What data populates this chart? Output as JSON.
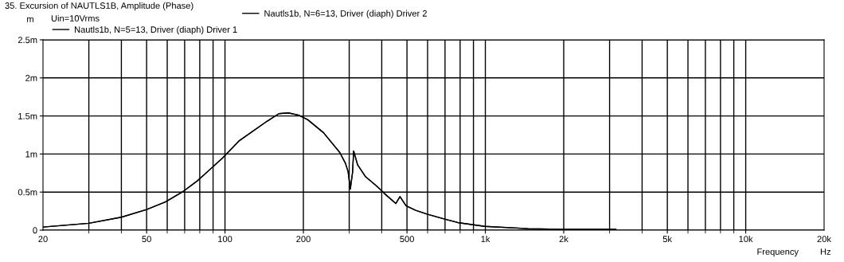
{
  "chart_data": {
    "type": "line",
    "title": "35. Excursion of NAUTLS1B, Amplitude (Phase)",
    "xlabel": "Frequency",
    "ylabel": "m",
    "annotations": [
      "Uin=10Vrms",
      "Hz"
    ],
    "log": "x",
    "grid": true,
    "legend": "top",
    "marker": "none",
    "line_style": "solid",
    "xlim": [
      20,
      20000
    ],
    "ylim": [
      0,
      2.5
    ],
    "xticks": [
      {
        "value": 20,
        "label": "20"
      },
      {
        "value": 50,
        "label": "50"
      },
      {
        "value": 100,
        "label": "100"
      },
      {
        "value": 200,
        "label": "200"
      },
      {
        "value": 500,
        "label": "500"
      },
      {
        "value": 1000,
        "label": "1k"
      },
      {
        "value": 2000,
        "label": "2k"
      },
      {
        "value": 5000,
        "label": "5k"
      },
      {
        "value": 10000,
        "label": "10k"
      },
      {
        "value": 20000,
        "label": "20k"
      }
    ],
    "yticks": [
      {
        "value": 0,
        "label": "0"
      },
      {
        "value": 0.5,
        "label": "0.5m"
      },
      {
        "value": 1,
        "label": "1m"
      },
      {
        "value": 1.5,
        "label": "1.5m"
      },
      {
        "value": 2,
        "label": "2m"
      },
      {
        "value": 2.5,
        "label": "2.5m"
      }
    ],
    "x": [
      20,
      30,
      40,
      50,
      59,
      68.5,
      78.5,
      98,
      113,
      145,
      161,
      175,
      192,
      208,
      239,
      276,
      290,
      297,
      303,
      309,
      312,
      323,
      347,
      382,
      410,
      453,
      470,
      496,
      540,
      597,
      689,
      783,
      994,
      1460,
      1970,
      3170
    ],
    "series": [
      {
        "name": "Nautls1b, N=5=13, Driver (diaph) Driver 1",
        "color": "#000000",
        "values": [
          0.04,
          0.09,
          0.17,
          0.27,
          0.37,
          0.5,
          0.65,
          0.95,
          1.17,
          1.43,
          1.53,
          1.54,
          1.51,
          1.45,
          1.28,
          1.02,
          0.88,
          0.77,
          0.54,
          0.76,
          1.04,
          0.86,
          0.7,
          0.58,
          0.48,
          0.35,
          0.44,
          0.32,
          0.26,
          0.21,
          0.15,
          0.1,
          0.05,
          0.02,
          0.01,
          0.01
        ]
      },
      {
        "name": "Nautls1b, N=6=13, Driver (diaph) Driver 2",
        "color": "#000000",
        "values": [
          0.04,
          0.09,
          0.17,
          0.27,
          0.37,
          0.5,
          0.65,
          0.95,
          1.17,
          1.43,
          1.53,
          1.54,
          1.51,
          1.45,
          1.28,
          1.02,
          0.88,
          0.77,
          0.54,
          0.76,
          1.04,
          0.86,
          0.7,
          0.58,
          0.48,
          0.35,
          0.44,
          0.32,
          0.26,
          0.21,
          0.15,
          0.1,
          0.05,
          0.02,
          0.01,
          0.01
        ]
      }
    ]
  }
}
